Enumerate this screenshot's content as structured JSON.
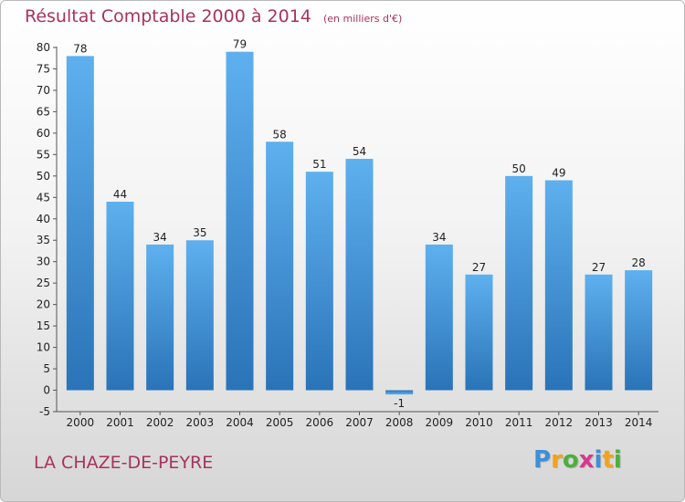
{
  "chart_data": {
    "type": "bar",
    "title": "Résultat Comptable 2000 à 2014",
    "subtitle": "(en milliers d'€)",
    "categories": [
      "2000",
      "2001",
      "2002",
      "2003",
      "2004",
      "2005",
      "2006",
      "2007",
      "2008",
      "2009",
      "2010",
      "2011",
      "2012",
      "2013",
      "2014"
    ],
    "values": [
      78,
      44,
      34,
      35,
      79,
      58,
      51,
      54,
      -1,
      34,
      27,
      50,
      49,
      27,
      28
    ],
    "ylim": [
      -5,
      80
    ],
    "yticks": [
      -5,
      0,
      5,
      10,
      15,
      20,
      25,
      30,
      35,
      40,
      45,
      50,
      55,
      60,
      65,
      70,
      75,
      80
    ],
    "grid": false,
    "bar_color": "#4a9be0"
  },
  "footer": {
    "commune": "LA CHAZE-DE-PEYRE"
  },
  "logo": {
    "letters": [
      "P",
      "r",
      "o",
      "x",
      "i",
      "t",
      "i"
    ],
    "colors": [
      "#3d8fd8",
      "#f2a31b",
      "#4caf3c",
      "#d43a8e",
      "#3d8fd8",
      "#f2a31b",
      "#4caf3c"
    ]
  }
}
